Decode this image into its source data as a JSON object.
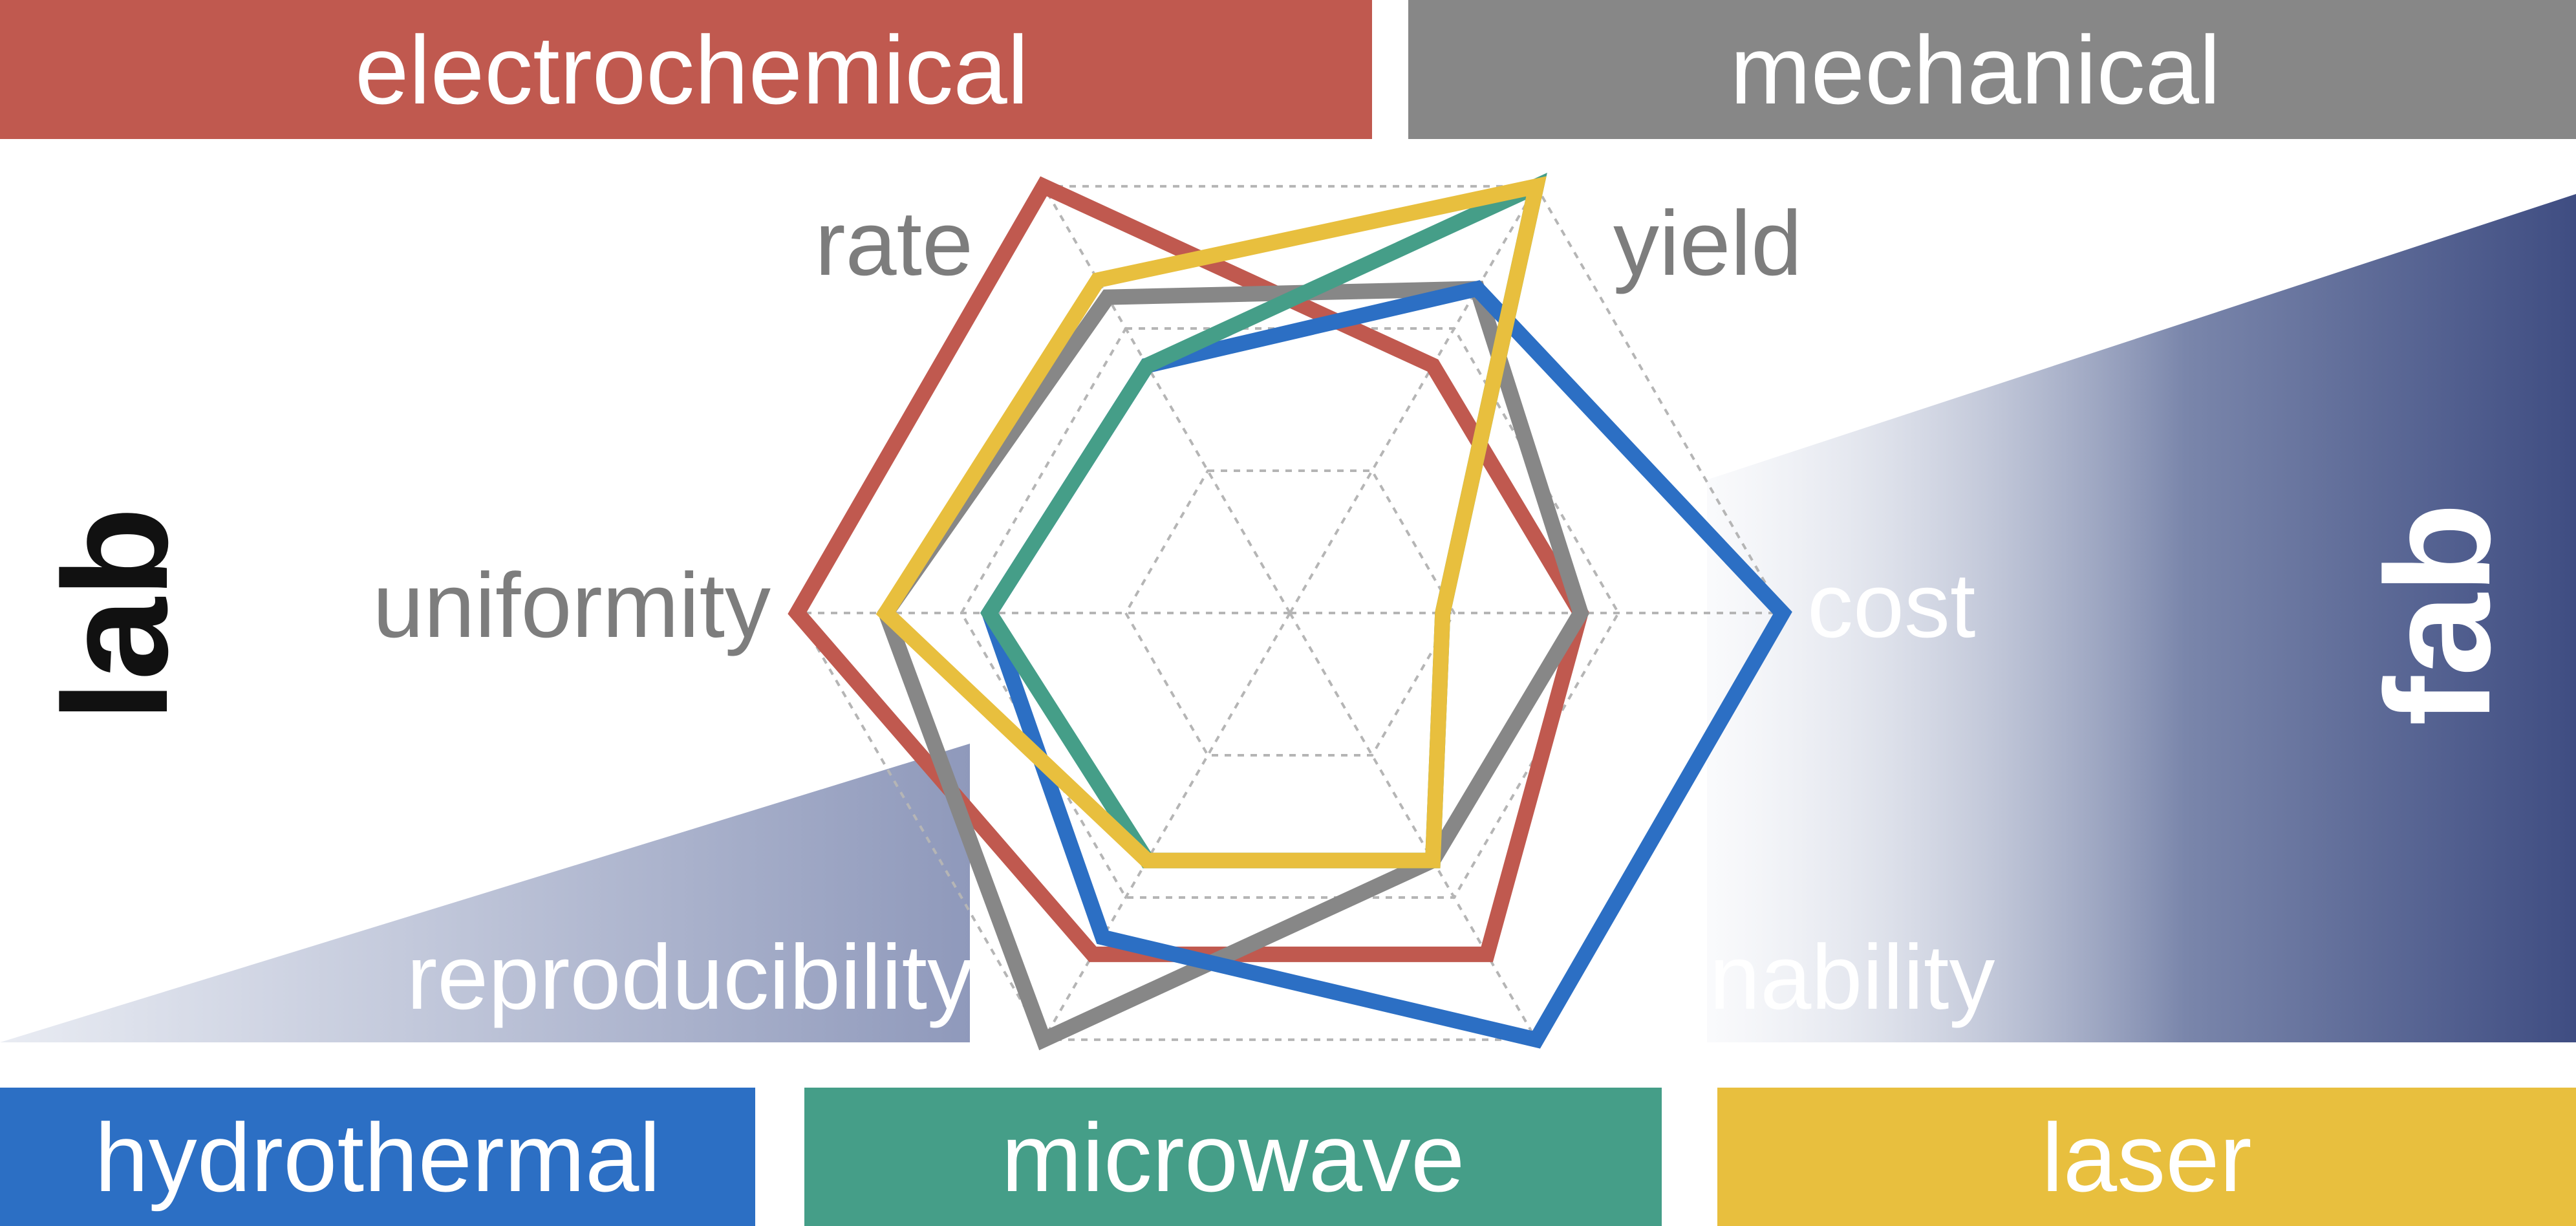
{
  "colors": {
    "electrochemical": "#c0594f",
    "mechanical": "#878787",
    "hydrothermal": "#2c6fc4",
    "microwave": "#459e88",
    "laser": "#e8bf3e",
    "fab_gradient_dark": "#3f4d82",
    "fab_gradient_light": "#e9ecf3",
    "axis_label": "#7d7d7d",
    "grid": "#b5b5b5",
    "lab_text": "#111111",
    "fab_text": "#ffffff"
  },
  "top_labels": {
    "left": "electrochemical",
    "right": "mechanical"
  },
  "bottom_labels": {
    "left": "hydrothermal",
    "middle": "microwave",
    "right": "laser"
  },
  "side_labels": {
    "lab": "lab",
    "fab": "fab"
  },
  "chart_data": {
    "type": "radar",
    "axes": [
      "rate",
      "yield",
      "cost",
      "tunability",
      "reproducibility",
      "uniformity"
    ],
    "rings": 3,
    "max": 1.0,
    "series": [
      {
        "name": "electrochemical",
        "values": [
          1.0,
          0.58,
          0.59,
          0.8,
          0.8,
          1.0
        ]
      },
      {
        "name": "mechanical",
        "values": [
          0.74,
          0.76,
          0.59,
          0.58,
          1.0,
          0.82
        ]
      },
      {
        "name": "hydrothermal",
        "values": [
          0.58,
          0.76,
          1.0,
          1.0,
          0.76,
          0.61
        ]
      },
      {
        "name": "microwave",
        "values": [
          0.58,
          1.0,
          0.31,
          0.58,
          0.58,
          0.61
        ]
      },
      {
        "name": "laser",
        "values": [
          0.78,
          1.0,
          0.31,
          0.58,
          0.58,
          0.82
        ]
      }
    ]
  }
}
